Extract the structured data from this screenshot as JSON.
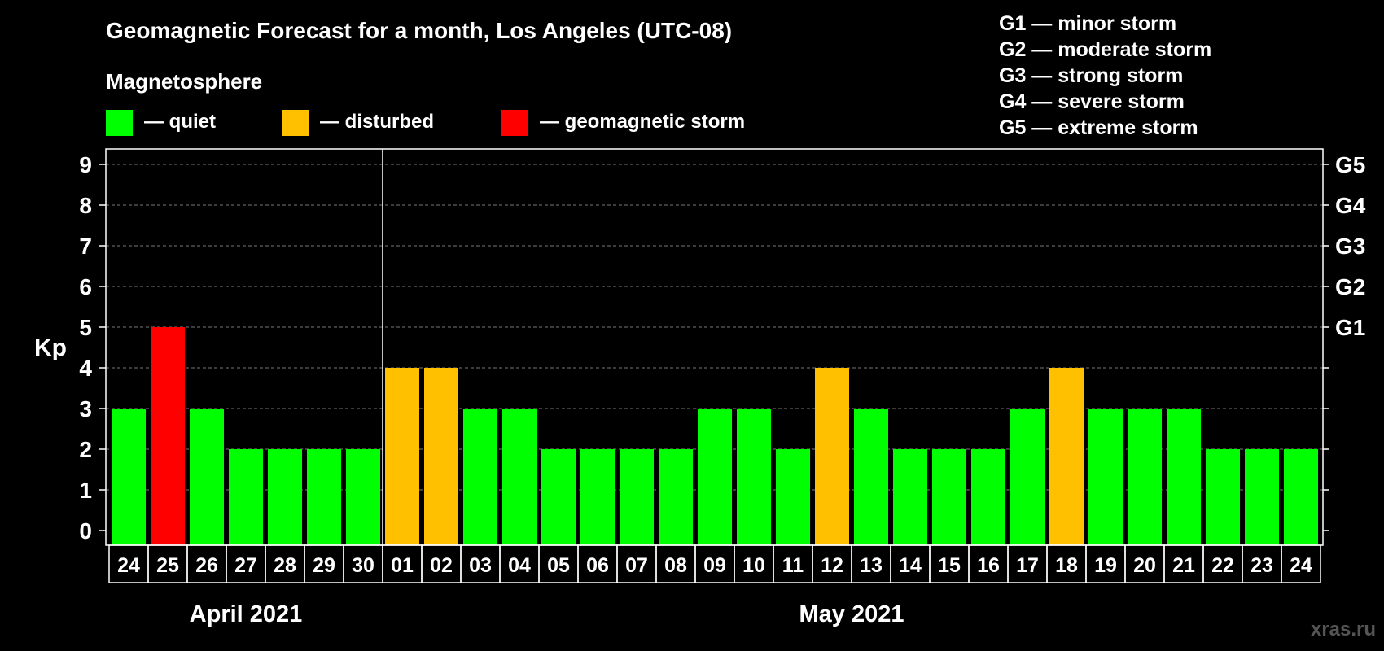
{
  "chart_data": {
    "type": "bar",
    "title": "Geomagnetic Forecast for a month, Los Angeles (UTC-08)",
    "legend_heading": "Magnetosphere",
    "legend": [
      {
        "label": "— quiet",
        "color": "#00ff00"
      },
      {
        "label": "— disturbed",
        "color": "#ffc000"
      },
      {
        "label": "— geomagnetic storm",
        "color": "#ff0000"
      }
    ],
    "g_scale_legend": [
      "G1 — minor storm",
      "G2 — moderate storm",
      "G3 — strong storm",
      "G4 — severe storm",
      "G5 — extreme storm"
    ],
    "ylabel": "Kp",
    "ylim": [
      0,
      9
    ],
    "yticks": [
      "0",
      "1",
      "2",
      "3",
      "4",
      "5",
      "6",
      "7",
      "8",
      "9"
    ],
    "right_axis": [
      {
        "kp": 5,
        "label": "G1"
      },
      {
        "kp": 6,
        "label": "G2"
      },
      {
        "kp": 7,
        "label": "G3"
      },
      {
        "kp": 8,
        "label": "G4"
      },
      {
        "kp": 9,
        "label": "G5"
      }
    ],
    "categories": [
      "24",
      "25",
      "26",
      "27",
      "28",
      "29",
      "30",
      "01",
      "02",
      "03",
      "04",
      "05",
      "06",
      "07",
      "08",
      "09",
      "10",
      "11",
      "12",
      "13",
      "14",
      "15",
      "16",
      "17",
      "18",
      "19",
      "20",
      "21",
      "22",
      "23",
      "24"
    ],
    "values": [
      3,
      5,
      3,
      2,
      2,
      2,
      2,
      4,
      4,
      3,
      3,
      2,
      2,
      2,
      2,
      3,
      3,
      2,
      4,
      3,
      2,
      2,
      2,
      3,
      4,
      3,
      3,
      3,
      2,
      2,
      2
    ],
    "status": [
      "quiet",
      "storm",
      "quiet",
      "quiet",
      "quiet",
      "quiet",
      "quiet",
      "disturbed",
      "disturbed",
      "quiet",
      "quiet",
      "quiet",
      "quiet",
      "quiet",
      "quiet",
      "quiet",
      "quiet",
      "quiet",
      "disturbed",
      "quiet",
      "quiet",
      "quiet",
      "quiet",
      "quiet",
      "disturbed",
      "quiet",
      "quiet",
      "quiet",
      "quiet",
      "quiet",
      "quiet"
    ],
    "months": [
      {
        "label": "April 2021",
        "count": 7
      },
      {
        "label": "May 2021",
        "count": 24
      }
    ],
    "grid": true,
    "colors": {
      "quiet": "#00ff00",
      "disturbed": "#ffc000",
      "storm": "#ff0000"
    }
  },
  "watermark": "xras.ru"
}
